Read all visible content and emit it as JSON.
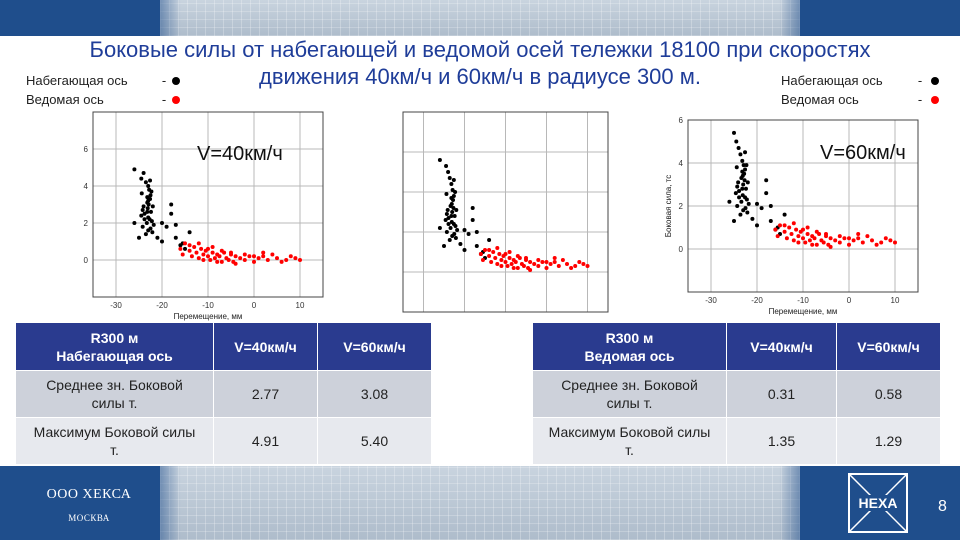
{
  "title_line1": "Боковые силы от набегающей и ведомой осей тележки 18100 при скоростях",
  "title_line2": "движения 40км/ч и 60км/ч в радиусе 300 м.",
  "legend_left": [
    {
      "label": "Набегающая ось",
      "dash": "-",
      "color": "#000000"
    },
    {
      "label": "Ведомая ось",
      "dash": "-",
      "color": "#ff0000"
    }
  ],
  "legend_right": [
    {
      "label": "Набегающая ось",
      "dash": "-",
      "color": "#000000"
    },
    {
      "label": "Ведомая ось",
      "dash": "-",
      "color": "#ff0000"
    }
  ],
  "chart_data": [
    {
      "type": "scatter",
      "title": "",
      "annotation": "V=40км/ч",
      "xlabel": "Перемещение, мм",
      "ylabel": "",
      "xlim": [
        -35,
        15
      ],
      "ylim": [
        -2,
        8
      ],
      "xticks": [
        -30,
        -20,
        -10,
        0,
        10
      ],
      "yticks": [
        0,
        2,
        4,
        6
      ],
      "grid": true,
      "series": [
        {
          "name": "Набегающая ось",
          "color": "#000000",
          "x": [
            -26,
            -24,
            -24.5,
            -23.5,
            -23,
            -22.8,
            -22.5,
            -22.6,
            -23,
            -23.2,
            -22.9,
            -24,
            -23.1,
            -24.2,
            -22.4,
            -23.8,
            -24.5,
            -23,
            -22.7,
            -22.2,
            -23.3,
            -21.8,
            -24.2,
            -22.5,
            -22.1,
            -23.5,
            -21,
            -25,
            -26,
            -23.2,
            -23.8,
            -22.3,
            -22,
            -23,
            -24.4,
            -23.2,
            -22.6,
            -20,
            -19,
            -18,
            -17,
            -16,
            -15,
            -14,
            -18,
            -20,
            -17,
            -15.5
          ],
          "y": [
            4.9,
            4.7,
            4.4,
            4.2,
            4.0,
            3.8,
            3.5,
            3.3,
            3.2,
            3.1,
            3.0,
            2.9,
            2.8,
            2.7,
            2.6,
            2.5,
            2.4,
            2.3,
            2.2,
            2.1,
            2.0,
            1.9,
            1.8,
            1.7,
            1.5,
            1.4,
            1.2,
            1.2,
            2.0,
            3.4,
            2.2,
            3.7,
            2.9,
            1.6,
            3.6,
            2.6,
            4.3,
            1.0,
            1.8,
            2.5,
            1.2,
            0.8,
            0.6,
            1.5,
            3.0,
            2.0,
            1.9,
            0.9
          ]
        },
        {
          "name": "Ведомая ось",
          "color": "#ff0000",
          "x": [
            -16,
            -15.5,
            -15,
            -14,
            -13.5,
            -13,
            -12.5,
            -12,
            -11.5,
            -11,
            -10.5,
            -10,
            -9.5,
            -9,
            -8.5,
            -8,
            -7.5,
            -7,
            -6.5,
            -6,
            -5.5,
            -5,
            -4.5,
            -4,
            -3,
            -2,
            -1,
            0,
            1,
            2,
            3,
            4,
            5,
            6,
            7,
            8,
            9,
            10,
            -14,
            -12,
            -10,
            -9,
            -7,
            -5,
            -4,
            -2,
            0,
            2,
            -11,
            -8
          ],
          "y": [
            0.6,
            0.3,
            0.9,
            0.5,
            0.2,
            0.7,
            0.4,
            0.1,
            0.6,
            0.3,
            0.5,
            0.2,
            0.0,
            0.4,
            0.1,
            0.3,
            0.2,
            -0.1,
            0.4,
            0.1,
            0.0,
            0.3,
            -0.1,
            0.2,
            0.1,
            0.0,
            0.2,
            -0.1,
            0.1,
            0.2,
            0.0,
            0.3,
            0.1,
            -0.1,
            0.0,
            0.2,
            0.1,
            0.0,
            0.8,
            0.9,
            0.6,
            0.7,
            0.5,
            0.4,
            -0.2,
            0.3,
            0.2,
            0.4,
            0.0,
            -0.1
          ]
        }
      ]
    },
    {
      "type": "scatter",
      "title": "",
      "xlabel": "",
      "ylabel": "",
      "xlim": [
        -35,
        15
      ],
      "ylim": [
        -2,
        8
      ],
      "xticks": [
        -30,
        -20,
        -10,
        0,
        10
      ],
      "yticks": [
        0,
        2,
        4,
        6
      ],
      "grid": true,
      "series": [
        {
          "name": "Набегающая ось",
          "color": "#000000",
          "x": [
            -26,
            -24.5,
            -24,
            -23.6,
            -23.2,
            -22.9,
            -22.6,
            -22.8,
            -23.1,
            -23.4,
            -22.7,
            -24.1,
            -23,
            -24.3,
            -22.4,
            -23.9,
            -24.6,
            -23.1,
            -22.6,
            -22.2,
            -23.4,
            -21.8,
            -24.3,
            -22.5,
            -22.1,
            -23.6,
            -21,
            -25,
            -26,
            -23.2,
            -23.9,
            -22.3,
            -22,
            -23,
            -24.4,
            -23.2,
            -22.6,
            -20,
            -19,
            -18,
            -17,
            -16,
            -15,
            -14,
            -18,
            -20,
            -17,
            -15.5
          ],
          "y": [
            5.6,
            5.3,
            5.0,
            4.7,
            4.4,
            4.1,
            3.8,
            3.6,
            3.4,
            3.3,
            3.2,
            3.1,
            3.0,
            2.9,
            2.8,
            2.7,
            2.6,
            2.5,
            2.4,
            2.3,
            2.2,
            2.1,
            2.0,
            1.9,
            1.7,
            1.6,
            1.4,
            1.3,
            2.2,
            3.7,
            2.4,
            4.0,
            3.1,
            1.8,
            3.9,
            2.8,
            4.6,
            1.1,
            1.9,
            2.6,
            1.3,
            0.9,
            0.7,
            1.6,
            3.2,
            2.1,
            2.0,
            1.0
          ]
        },
        {
          "name": "Ведомая ось",
          "color": "#ff0000",
          "x": [
            -16,
            -15.5,
            -15,
            -14,
            -13.5,
            -13,
            -12.5,
            -12,
            -11.5,
            -11,
            -10.5,
            -10,
            -9.5,
            -9,
            -8.5,
            -8,
            -7.5,
            -7,
            -6.5,
            -6,
            -5.5,
            -5,
            -4.5,
            -4,
            -3,
            -2,
            -1,
            0,
            1,
            2,
            3,
            4,
            5,
            6,
            7,
            8,
            9,
            10,
            -14,
            -12,
            -10,
            -9,
            -7,
            -5,
            -4,
            -2,
            0,
            2,
            -11,
            -8
          ],
          "y": [
            0.9,
            0.6,
            1.1,
            0.8,
            0.5,
            1.0,
            0.7,
            0.4,
            0.9,
            0.6,
            0.8,
            0.5,
            0.3,
            0.7,
            0.4,
            0.6,
            0.5,
            0.2,
            0.7,
            0.4,
            0.3,
            0.6,
            0.2,
            0.5,
            0.4,
            0.3,
            0.5,
            0.2,
            0.4,
            0.5,
            0.3,
            0.6,
            0.4,
            0.2,
            0.3,
            0.5,
            0.4,
            0.3,
            1.1,
            1.2,
            0.9,
            1.0,
            0.8,
            0.7,
            0.1,
            0.6,
            0.5,
            0.7,
            0.3,
            0.2
          ]
        }
      ]
    },
    {
      "type": "scatter",
      "title": "",
      "annotation": "V=60км/ч",
      "xlabel": "Перемещение, мм",
      "ylabel": "Боковая сила, тс",
      "xlim": [
        -35,
        15
      ],
      "ylim": [
        -2,
        6
      ],
      "xticks": [
        -30,
        -20,
        -10,
        0,
        10
      ],
      "yticks": [
        0,
        2,
        4,
        6
      ],
      "grid": true,
      "series": [
        {
          "name": "Набегающая ось",
          "color": "#000000",
          "x": [
            -25,
            -24.5,
            -24,
            -23.6,
            -23.2,
            -22.9,
            -22.6,
            -22.8,
            -23.1,
            -23.4,
            -22.7,
            -24.1,
            -23,
            -24.3,
            -22.4,
            -23.9,
            -24.6,
            -23.1,
            -22.6,
            -22.2,
            -23.4,
            -21.8,
            -24.3,
            -22.5,
            -22.1,
            -23.6,
            -21,
            -25,
            -26,
            -23.2,
            -23.9,
            -22.3,
            -22,
            -23,
            -24.4,
            -23.2,
            -22.6,
            -20,
            -19,
            -18,
            -17,
            -16,
            -15,
            -14,
            -18,
            -20,
            -17,
            -15.5
          ],
          "y": [
            5.4,
            5.0,
            4.7,
            4.4,
            4.1,
            3.9,
            3.7,
            3.5,
            3.4,
            3.3,
            3.2,
            3.1,
            3.0,
            2.9,
            2.8,
            2.7,
            2.6,
            2.5,
            2.4,
            2.3,
            2.2,
            2.1,
            2.0,
            1.9,
            1.7,
            1.6,
            1.4,
            1.3,
            2.2,
            3.6,
            2.4,
            3.9,
            3.1,
            1.8,
            3.8,
            2.8,
            4.5,
            1.1,
            1.9,
            2.6,
            1.3,
            0.9,
            0.7,
            1.6,
            3.2,
            2.1,
            2.0,
            1.0
          ]
        },
        {
          "name": "Ведомая ось",
          "color": "#ff0000",
          "x": [
            -16,
            -15.5,
            -15,
            -14,
            -13.5,
            -13,
            -12.5,
            -12,
            -11.5,
            -11,
            -10.5,
            -10,
            -9.5,
            -9,
            -8.5,
            -8,
            -7.5,
            -7,
            -6.5,
            -6,
            -5.5,
            -5,
            -4.5,
            -4,
            -3,
            -2,
            -1,
            0,
            1,
            2,
            3,
            4,
            5,
            6,
            7,
            8,
            9,
            10,
            -14,
            -12,
            -10,
            -9,
            -7,
            -5,
            -4,
            -2,
            0,
            2,
            -11,
            -8
          ],
          "y": [
            0.9,
            0.6,
            1.1,
            0.8,
            0.5,
            1.0,
            0.7,
            0.4,
            0.9,
            0.6,
            0.8,
            0.5,
            0.3,
            0.7,
            0.4,
            0.6,
            0.5,
            0.2,
            0.7,
            0.4,
            0.3,
            0.6,
            0.2,
            0.5,
            0.4,
            0.3,
            0.5,
            0.2,
            0.4,
            0.5,
            0.3,
            0.6,
            0.4,
            0.2,
            0.3,
            0.5,
            0.4,
            0.3,
            1.1,
            1.2,
            0.9,
            1.0,
            0.8,
            0.7,
            0.1,
            0.6,
            0.5,
            0.7,
            0.3,
            0.2
          ]
        }
      ]
    }
  ],
  "table_left": {
    "header": [
      "R300 м\nНабегающая ось",
      "V=40км/ч",
      "V=60км/ч"
    ],
    "rows": [
      [
        "Среднее зн. Боковой силы т.",
        "2.77",
        "3.08"
      ],
      [
        "Максимум Боковой силы т.",
        "4.91",
        "5.40"
      ]
    ]
  },
  "table_right": {
    "header": [
      "R300 м\nВедомая ось",
      "V=40км/ч",
      "V=60км/ч"
    ],
    "rows": [
      [
        "Среднее зн. Боковой силы т.",
        "0.31",
        "0.58"
      ],
      [
        "Максимум Боковой силы т.",
        "1.35",
        "1.29"
      ]
    ]
  },
  "footer": {
    "company": "ООО ХЕКСА",
    "city": "МОСКВА",
    "logo_text": "HEXA",
    "page": "8"
  }
}
